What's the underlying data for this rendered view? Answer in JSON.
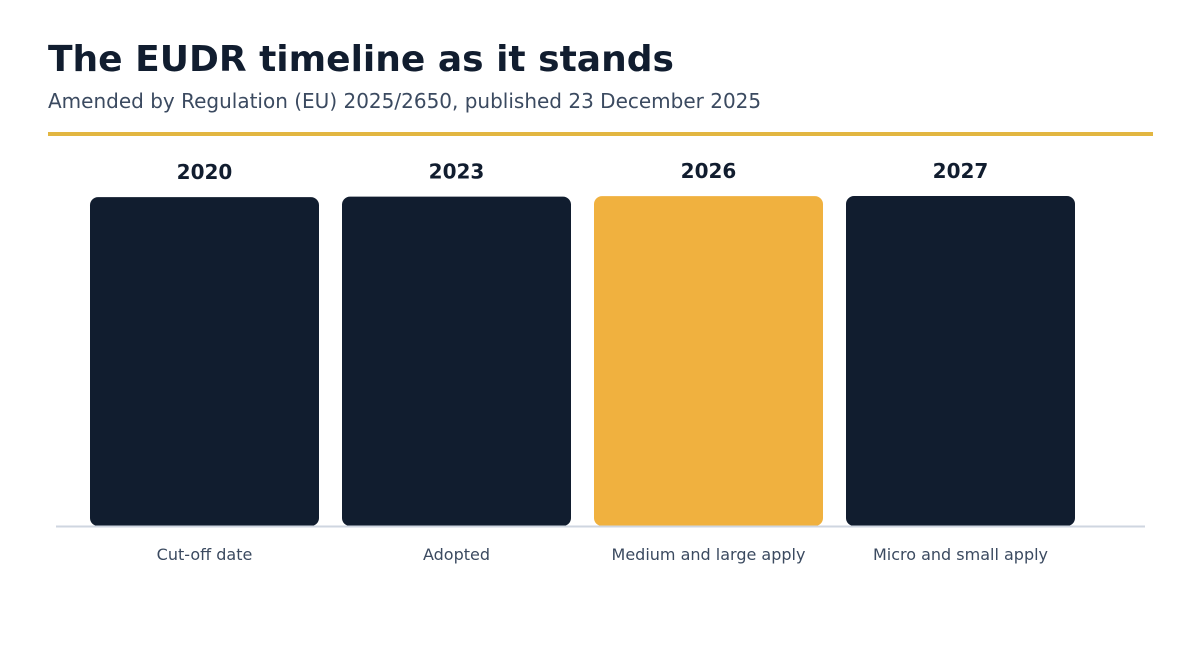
{
  "header": {
    "title": "The EUDR timeline as it stands",
    "subtitle": "Amended by Regulation (EU) 2025/2650, published 23 December 2025"
  },
  "colors": {
    "bar": "#111d2f",
    "highlight": "#f0b13f",
    "rule": "#e2b641",
    "axis": "#cfd6e0",
    "text": "#111d2f",
    "muted": "#3b4a60"
  },
  "chart_data": {
    "type": "bar",
    "title": "The EUDR timeline as it stands",
    "subtitle": "Amended by Regulation (EU) 2025/2650, published 23 December 2025",
    "categories": [
      "Cut-off date",
      "Adopted",
      "Medium and large apply",
      "Micro and small apply"
    ],
    "data_labels": [
      "2020",
      "2023",
      "2026",
      "2027"
    ],
    "values": [
      2020,
      2023,
      2026,
      2027
    ],
    "highlight_index": 2,
    "ylim": [
      0,
      2027
    ],
    "xlabel": "",
    "ylabel": "",
    "grid": false,
    "legend": "none"
  }
}
